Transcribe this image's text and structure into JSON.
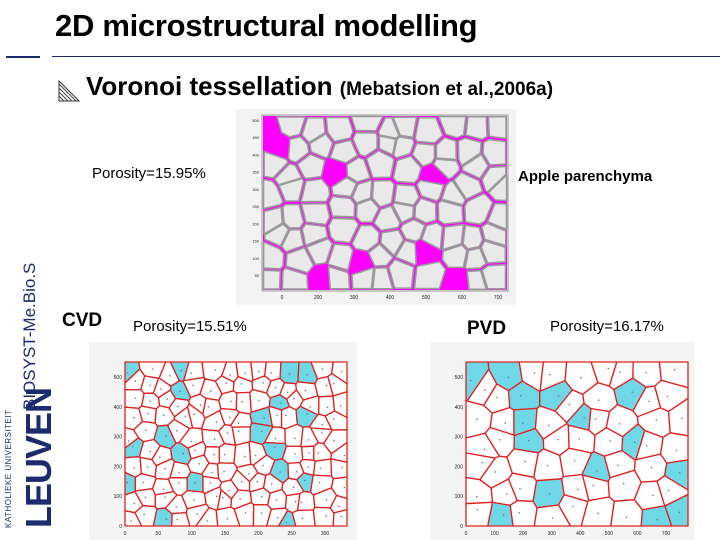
{
  "slide": {
    "title": "2D microstructural modelling",
    "subtitle_main": "Voronoi tessellation ",
    "subtitle_cite": "(Mebatsion et al.,2006a)",
    "side_label": "BIOSYST-Me.Bio.S",
    "logo_text": "LEUVEN",
    "logo_subtext": "KATHOLIEKE UNIVERSITEIT",
    "accent_color": "#1c2a6e",
    "bullet_icon": "hatched-triangle-icon"
  },
  "apple": {
    "porosity_label": "Porosity=15.95%",
    "caption": "Apple parenchyma",
    "pore_color": "#ff00ff",
    "x_ticks": [
      "0",
      "200",
      "300",
      "400",
      "500",
      "600",
      "700"
    ],
    "y_ticks": [
      "500",
      "450",
      "400",
      "350",
      "300",
      "250",
      "200",
      "150",
      "100",
      "50"
    ]
  },
  "cvd": {
    "label": "CVD",
    "porosity_label": "Porosity=15.51%",
    "pore_color": "#6fd8e6",
    "edge_color": "#e02020",
    "x_ticks": [
      "0",
      "50",
      "100",
      "150",
      "200",
      "250",
      "300"
    ],
    "y_ticks": [
      "500",
      "400",
      "300",
      "200",
      "100",
      "0"
    ]
  },
  "pvd": {
    "label": "PVD",
    "porosity_label": "Porosity=16.17%",
    "pore_color": "#6fd8e6",
    "edge_color": "#e02020",
    "x_ticks": [
      "0",
      "100",
      "200",
      "300",
      "400",
      "500",
      "600",
      "700"
    ],
    "y_ticks": [
      "500",
      "400",
      "300",
      "200",
      "100",
      "0"
    ]
  }
}
